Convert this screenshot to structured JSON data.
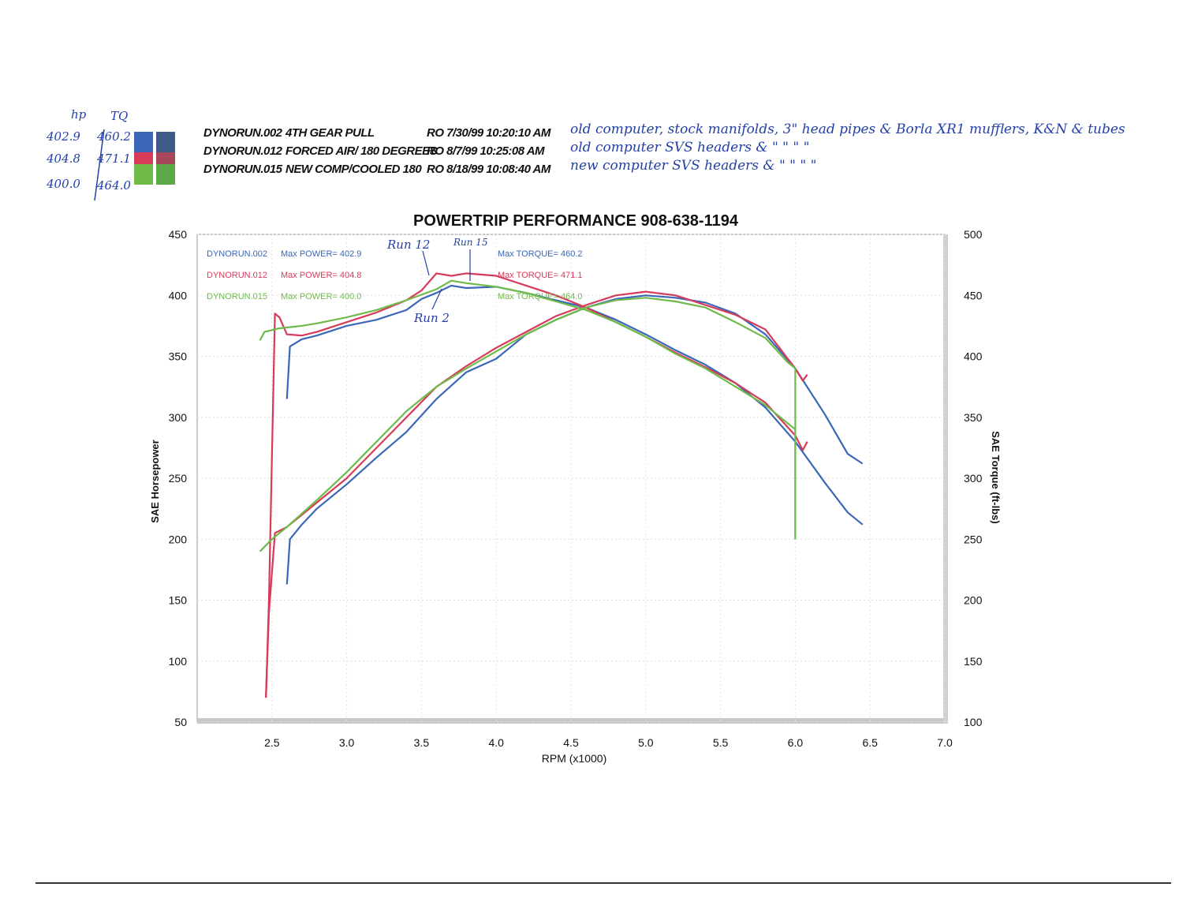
{
  "header_notes": {
    "hp_label": "hp",
    "tq_label": "TQ",
    "rows": [
      {
        "hp": "402.9",
        "tq": "460.2",
        "colors": [
          "#3a67b8",
          "#3e5a86"
        ]
      },
      {
        "hp": "404.8",
        "tq": "471.1",
        "colors": [
          "#d83a5a",
          "#a8465a"
        ]
      },
      {
        "hp": "400.0",
        "tq": "464.0",
        "colors": [
          "#6fbb4a",
          "#5ca94a"
        ]
      }
    ]
  },
  "runs": [
    {
      "id": "DYNORUN.002",
      "desc": "4TH GEAR PULL",
      "ro": "RO 7/30/99 10:20:10 AM",
      "note": "old computer, stock manifolds, 3\" head pipes & Borla XR1 mufflers, K&N & tubes"
    },
    {
      "id": "DYNORUN.012",
      "desc": "FORCED AIR/ 180 DEGREES",
      "ro": "RO 8/7/99 10:25:08 AM",
      "note": "old computer SVS headers        &        \"        \"        \"        \""
    },
    {
      "id": "DYNORUN.015",
      "desc": "NEW COMP/COOLED 180",
      "ro": "RO 8/18/99 10:08:40 AM",
      "note": "new computer SVS headers        &        \"        \"        \"        \""
    }
  ],
  "annotations": {
    "run12": "Run 12",
    "run15": "Run 15",
    "run2": "Run 2"
  },
  "chart_data": {
    "type": "line",
    "title": "POWERTRIP PERFORMANCE 908-638-1194",
    "xlabel": "RPM (x1000)",
    "ylabel": "SAE Horsepower",
    "y2label": "SAE Torque (ft-lbs)",
    "xlim": [
      2.0,
      7.0
    ],
    "ylim": [
      50,
      450
    ],
    "y2lim": [
      100,
      500
    ],
    "xticks": [
      "2.5",
      "3.0",
      "3.5",
      "4.0",
      "4.5",
      "5.0",
      "5.5",
      "6.0",
      "6.5",
      "7.0"
    ],
    "yticks": [
      "50",
      "100",
      "150",
      "200",
      "250",
      "300",
      "350",
      "400",
      "450"
    ],
    "y2ticks": [
      "100",
      "150",
      "200",
      "250",
      "300",
      "350",
      "400",
      "450",
      "500"
    ],
    "grid": true,
    "legend": [
      {
        "run": "DYNORUN.002",
        "power": "Max POWER= 402.9",
        "torque": "Max TORQUE= 460.2",
        "color": "#3a67b8"
      },
      {
        "run": "DYNORUN.012",
        "power": "Max POWER= 404.8",
        "torque": "Max TORQUE= 471.1",
        "color": "#d83a5a"
      },
      {
        "run": "DYNORUN.015",
        "power": "Max POWER= 400.0",
        "torque": "Max TORQUE= 464.0",
        "color": "#6fbb4a"
      }
    ],
    "series": [
      {
        "name": "DYNORUN.002",
        "color": "#3a67b8",
        "torque": [
          [
            2.6,
            365
          ],
          [
            2.62,
            408
          ],
          [
            2.7,
            414
          ],
          [
            2.8,
            417
          ],
          [
            3.0,
            425
          ],
          [
            3.2,
            430
          ],
          [
            3.4,
            438
          ],
          [
            3.5,
            447
          ],
          [
            3.6,
            452
          ],
          [
            3.7,
            458
          ],
          [
            3.8,
            456
          ],
          [
            4.0,
            457
          ],
          [
            4.2,
            452
          ],
          [
            4.4,
            446
          ],
          [
            4.6,
            440
          ],
          [
            4.8,
            430
          ],
          [
            5.0,
            418
          ],
          [
            5.2,
            405
          ],
          [
            5.4,
            393
          ],
          [
            5.6,
            378
          ],
          [
            5.8,
            358
          ],
          [
            6.0,
            330
          ],
          [
            6.2,
            296
          ],
          [
            6.35,
            272
          ],
          [
            6.45,
            262
          ]
        ],
        "power": [
          [
            2.6,
            163
          ],
          [
            2.62,
            200
          ],
          [
            2.7,
            212
          ],
          [
            2.8,
            225
          ],
          [
            3.0,
            245
          ],
          [
            3.2,
            267
          ],
          [
            3.4,
            288
          ],
          [
            3.6,
            315
          ],
          [
            3.8,
            337
          ],
          [
            4.0,
            348
          ],
          [
            4.2,
            368
          ],
          [
            4.4,
            380
          ],
          [
            4.6,
            390
          ],
          [
            4.8,
            397
          ],
          [
            5.0,
            400
          ],
          [
            5.2,
            398
          ],
          [
            5.4,
            394
          ],
          [
            5.6,
            385
          ],
          [
            5.8,
            368
          ],
          [
            6.0,
            340
          ],
          [
            6.2,
            302
          ],
          [
            6.35,
            270
          ],
          [
            6.45,
            262
          ]
        ]
      },
      {
        "name": "DYNORUN.012",
        "color": "#d83a5a",
        "torque": [
          [
            2.46,
            120
          ],
          [
            2.48,
            200
          ],
          [
            2.52,
            435
          ],
          [
            2.55,
            432
          ],
          [
            2.6,
            418
          ],
          [
            2.7,
            417
          ],
          [
            2.8,
            420
          ],
          [
            3.0,
            428
          ],
          [
            3.2,
            436
          ],
          [
            3.4,
            446
          ],
          [
            3.5,
            454
          ],
          [
            3.6,
            468
          ],
          [
            3.7,
            466
          ],
          [
            3.8,
            468
          ],
          [
            4.0,
            466
          ],
          [
            4.2,
            458
          ],
          [
            4.4,
            450
          ],
          [
            4.6,
            440
          ],
          [
            4.8,
            428
          ],
          [
            5.0,
            416
          ],
          [
            5.2,
            403
          ],
          [
            5.4,
            391
          ],
          [
            5.6,
            378
          ],
          [
            5.8,
            362
          ],
          [
            6.0,
            335
          ],
          [
            6.05,
            323
          ],
          [
            6.08,
            330
          ]
        ],
        "power": [
          [
            2.46,
            70
          ],
          [
            2.48,
            140
          ],
          [
            2.52,
            205
          ],
          [
            2.6,
            210
          ],
          [
            2.8,
            230
          ],
          [
            3.0,
            250
          ],
          [
            3.2,
            275
          ],
          [
            3.4,
            300
          ],
          [
            3.6,
            325
          ],
          [
            3.8,
            342
          ],
          [
            4.0,
            357
          ],
          [
            4.2,
            370
          ],
          [
            4.4,
            383
          ],
          [
            4.6,
            392
          ],
          [
            4.8,
            400
          ],
          [
            5.0,
            403
          ],
          [
            5.2,
            400
          ],
          [
            5.4,
            392
          ],
          [
            5.6,
            384
          ],
          [
            5.8,
            372
          ],
          [
            6.0,
            340
          ],
          [
            6.05,
            330
          ],
          [
            6.08,
            335
          ]
        ]
      },
      {
        "name": "DYNORUN.015",
        "color": "#6fbb4a",
        "torque": [
          [
            2.42,
            413
          ],
          [
            2.45,
            420
          ],
          [
            2.55,
            423
          ],
          [
            2.7,
            425
          ],
          [
            2.8,
            427
          ],
          [
            3.0,
            432
          ],
          [
            3.2,
            438
          ],
          [
            3.4,
            446
          ],
          [
            3.6,
            455
          ],
          [
            3.7,
            462
          ],
          [
            3.8,
            460
          ],
          [
            4.0,
            457
          ],
          [
            4.2,
            452
          ],
          [
            4.4,
            445
          ],
          [
            4.6,
            438
          ],
          [
            4.8,
            428
          ],
          [
            5.0,
            416
          ],
          [
            5.2,
            402
          ],
          [
            5.4,
            390
          ],
          [
            5.6,
            375
          ],
          [
            5.8,
            360
          ],
          [
            5.95,
            345
          ],
          [
            6.0,
            340
          ],
          [
            6.0,
            300
          ],
          [
            6.0,
            250
          ]
        ],
        "power": [
          [
            2.42,
            190
          ],
          [
            2.5,
            200
          ],
          [
            2.6,
            210
          ],
          [
            2.8,
            232
          ],
          [
            3.0,
            255
          ],
          [
            3.2,
            280
          ],
          [
            3.4,
            305
          ],
          [
            3.6,
            325
          ],
          [
            3.8,
            340
          ],
          [
            4.0,
            354
          ],
          [
            4.2,
            368
          ],
          [
            4.4,
            380
          ],
          [
            4.6,
            390
          ],
          [
            4.8,
            396
          ],
          [
            5.0,
            398
          ],
          [
            5.2,
            395
          ],
          [
            5.4,
            390
          ],
          [
            5.6,
            378
          ],
          [
            5.8,
            365
          ],
          [
            5.95,
            345
          ],
          [
            6.0,
            340
          ],
          [
            6.0,
            300
          ],
          [
            6.0,
            200
          ]
        ]
      }
    ]
  }
}
